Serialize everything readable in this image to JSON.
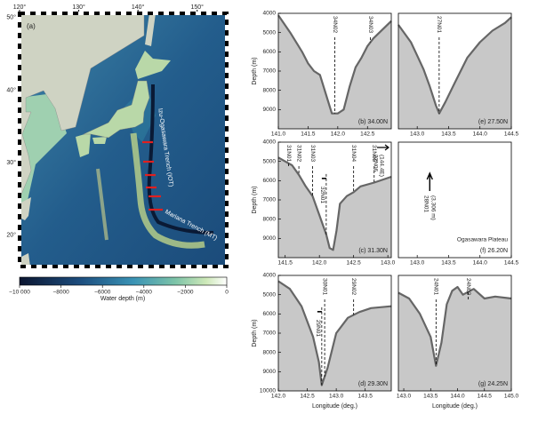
{
  "map": {
    "panel_label": "(a)",
    "lonlim": [
      120,
      155
    ],
    "latlim": [
      15.7,
      50.6
    ],
    "lon_ticks": [
      {
        "value": 120,
        "label": "120°"
      },
      {
        "value": 130,
        "label": "130°"
      },
      {
        "value": 140,
        "label": "140°"
      },
      {
        "value": 150,
        "label": "150°"
      }
    ],
    "lat_ticks": [
      {
        "value": 20,
        "label": "20°"
      },
      {
        "value": 30,
        "label": "30°"
      },
      {
        "value": 40,
        "label": "40°"
      },
      {
        "value": 50,
        "label": "50°"
      }
    ],
    "labels": [
      "Izu-Ogasawara Trench (IOT)",
      "Mariana Trench (MT)"
    ],
    "colorbar": {
      "label": "Water depth (m)",
      "range": [
        -10000,
        0
      ],
      "ticks": [
        {
          "value": -10000,
          "label": "−10 000"
        },
        {
          "value": -8000,
          "label": "−8000"
        },
        {
          "value": -6000,
          "label": "−6000"
        },
        {
          "value": -4000,
          "label": "−4000"
        },
        {
          "value": -2000,
          "label": "−2000"
        },
        0
      ]
    }
  },
  "chart_data": [
    {
      "type": "line",
      "panel_label": "(b) 34.00N",
      "ylabel": "Depth (m)",
      "color": "#666666",
      "x": [
        141.0,
        141.2,
        141.4,
        141.5,
        141.6,
        141.7,
        141.8,
        141.9,
        142.0,
        142.1,
        142.2,
        142.3,
        142.4,
        142.5,
        142.6,
        142.7,
        142.8,
        142.9
      ],
      "values": [
        4100,
        5000,
        6000,
        6600,
        7000,
        7200,
        8200,
        9200,
        9200,
        9000,
        7800,
        6800,
        6300,
        5700,
        5300,
        5000,
        4700,
        4400
      ],
      "xlim": [
        141.0,
        142.9
      ],
      "xticks": [
        {
          "value": 141.0,
          "label": "141.0"
        },
        141.5,
        {
          "value": 142.0,
          "label": "142.0"
        },
        142.5
      ],
      "ylim": [
        4000,
        10000
      ],
      "yticks": [
        4000,
        5000,
        6000,
        7000,
        8000,
        9000
      ],
      "stations": [
        {
          "label": "34N02",
          "x": 141.95
        },
        {
          "label": "34N03",
          "x": 142.55
        }
      ]
    },
    {
      "type": "line",
      "panel_label": "(e) 27.50N",
      "color": "#666666",
      "x": [
        142.7,
        142.9,
        143.0,
        143.1,
        143.2,
        143.3,
        143.35,
        143.45,
        143.6,
        143.8,
        144.0,
        144.2,
        144.4,
        144.5
      ],
      "values": [
        4600,
        5500,
        6200,
        6900,
        7800,
        8800,
        9200,
        8600,
        7600,
        6300,
        5500,
        4900,
        4500,
        4200
      ],
      "xlim": [
        142.7,
        144.5
      ],
      "xticks": [
        {
          "value": 143.0,
          "label": "143.0"
        },
        143.5,
        {
          "value": 144.0,
          "label": "144.0"
        },
        144.5
      ],
      "ylim": [
        4000,
        10000
      ],
      "stations": [
        {
          "label": "27N01",
          "x": 143.35
        }
      ]
    },
    {
      "type": "line",
      "panel_label": "(c) 31.30N",
      "ylabel": "Depth (m)",
      "color": "#666666",
      "x": [
        141.4,
        141.5,
        141.6,
        141.7,
        141.8,
        141.9,
        142.0,
        142.1,
        142.15,
        142.2,
        142.25,
        142.3,
        142.4,
        142.5,
        142.6,
        142.8,
        143.05
      ],
      "values": [
        4800,
        5000,
        5200,
        5700,
        6300,
        6800,
        7800,
        8800,
        9500,
        9600,
        8600,
        7200,
        6800,
        6600,
        6300,
        6100,
        5800
      ],
      "xlim": [
        141.4,
        143.05
      ],
      "xticks": [
        141.5,
        {
          "value": 142.0,
          "label": "142.0"
        },
        142.5,
        {
          "value": 143.0,
          "label": "143.0"
        }
      ],
      "ylim": [
        4000,
        10000
      ],
      "yticks": [
        4000,
        5000,
        6000,
        7000,
        8000,
        9000
      ],
      "stations": [
        {
          "label": "31N01",
          "x": 141.55
        },
        {
          "label": "31N02",
          "x": 141.7
        },
        {
          "label": "31N03",
          "x": 141.9
        },
        {
          "label": "32N01",
          "x": 142.1
        },
        {
          "label": "31N04",
          "x": 142.5
        },
        {
          "label": "31N05",
          "x": 142.8
        }
      ],
      "offscale_station": {
        "label": "32N06",
        "note": "(144.4E)"
      }
    },
    {
      "type": "line",
      "panel_label": "(f) 26.20N",
      "annotation": "Ogasawara Plateau",
      "xlim": [
        142.7,
        144.5
      ],
      "xticks": [
        {
          "value": 143.0,
          "label": "143.0"
        },
        143.5,
        {
          "value": 144.0,
          "label": "144.0"
        },
        144.5
      ],
      "ylim": [
        4000,
        10000
      ],
      "stations": [
        {
          "label": "28N01",
          "x": 143.2,
          "note": "(3,306 m)"
        }
      ]
    },
    {
      "type": "line",
      "panel_label": "(d) 29.30N",
      "ylabel": "Depth (m)",
      "xlabel": "Longitude (deg.)",
      "color": "#666666",
      "x": [
        142.0,
        142.2,
        142.4,
        142.5,
        142.6,
        142.7,
        142.75,
        142.85,
        143.0,
        143.2,
        143.4,
        143.6,
        143.95
      ],
      "values": [
        4300,
        4700,
        5600,
        6400,
        7200,
        8500,
        9700,
        8800,
        7000,
        6200,
        5900,
        5700,
        5600
      ],
      "xlim": [
        142.0,
        143.95
      ],
      "xticks": [
        {
          "value": 142.0,
          "label": "142.0"
        },
        142.5,
        {
          "value": 143.0,
          "label": "143.0"
        },
        143.5
      ],
      "ylim": [
        4000,
        10000
      ],
      "yticks": [
        4000,
        5000,
        6000,
        7000,
        8000,
        9000,
        10000
      ],
      "stations": [
        {
          "label": "30N01",
          "x": 142.8
        },
        {
          "label": "29N01",
          "x": 142.75
        },
        {
          "label": "29N02",
          "x": 143.3
        }
      ]
    },
    {
      "type": "line",
      "panel_label": "(g) 24.25N",
      "xlabel": "Longitude (deg.)",
      "color": "#666666",
      "x": [
        142.9,
        143.1,
        143.3,
        143.5,
        143.6,
        143.7,
        143.8,
        143.9,
        144.0,
        144.1,
        144.3,
        144.5,
        144.7,
        145.0
      ],
      "values": [
        4900,
        5200,
        6000,
        7200,
        8700,
        7500,
        5500,
        4800,
        4600,
        5000,
        4700,
        5200,
        5100,
        5200
      ],
      "xlim": [
        142.9,
        145.0
      ],
      "xticks": [
        {
          "value": 143.0,
          "label": "143.0"
        },
        143.5,
        {
          "value": 144.0,
          "label": "144.0"
        },
        144.5,
        {
          "value": 145.0,
          "label": "145.0"
        }
      ],
      "ylim": [
        4000,
        10000
      ],
      "stations": [
        {
          "label": "24N01",
          "x": 143.6
        },
        {
          "label": "24N02",
          "x": 144.2
        }
      ]
    }
  ]
}
